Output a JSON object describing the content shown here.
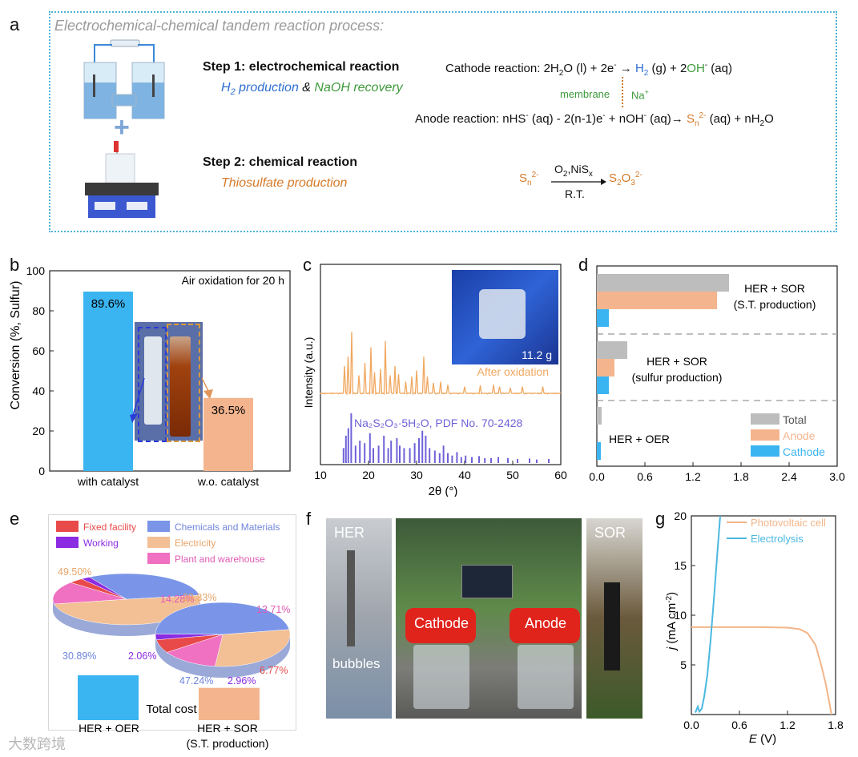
{
  "panel_labels": {
    "a": "a",
    "b": "b",
    "c": "c",
    "d": "d",
    "e": "e",
    "f": "f",
    "g": "g"
  },
  "panel_a": {
    "title": "Electrochemical-chemical tandem reaction process:",
    "step1_title": "Step 1: electrochemical reaction",
    "step1_h2": "H",
    "step1_h2_sub": "2",
    "step1_h2_rest": " production",
    "step1_amp": " & ",
    "step1_naoh": "NaOH recovery",
    "step2_title": "Step 2: chemical reaction",
    "step2_sub": "Thiosulfate production",
    "cathode_eq_prefix": "Cathode reaction: 2H",
    "cathode_eq_mid1": "O (l) + 2e",
    "cathode_eq_mid2": " → ",
    "cathode_eq_h2": "H",
    "cathode_eq_h2sub": "2",
    "cathode_eq_mid3": " (g) + 2",
    "cathode_eq_oh": "OH",
    "cathode_eq_end": " (aq)",
    "membrane": "membrane",
    "na": "Na",
    "anode_eq_prefix": "Anode reaction: nHS",
    "anode_eq_mid1": " (aq) - 2(n-1)e",
    "anode_eq_mid2": " + nOH",
    "anode_eq_mid3": " (aq)→ ",
    "anode_eq_sn": "S",
    "anode_eq_n": "n",
    "anode_eq_2m": "2-",
    "anode_eq_end": " (aq) + nH",
    "anode_eq_end2": "O",
    "step2_left": "S",
    "step2_left_sub": "n",
    "step2_left_sup": "2-",
    "step2_top": "O",
    "step2_top_sub": "2",
    "step2_top_rest": ",NiS",
    "step2_top_x": "x",
    "step2_bottom": "R.T.",
    "step2_right": "S",
    "step2_right_sub1": "2",
    "step2_right_O": "O",
    "step2_right_sub2": "3",
    "step2_right_sup": "2-"
  },
  "panel_b": {
    "ylabel": "Conversion (%, Sulfur)",
    "annotation": "Air oxidation for 20 h",
    "colors": {
      "with": "#3bb5f1",
      "without": "#f4b58e"
    }
  },
  "panel_c": {
    "ylabel": "Intensity (a.u.)",
    "xlabel": "2θ (°)",
    "label_after": "After oxidation",
    "label_ref": "Na₂S₂O₃·5H₂O, PDF No. 70-2428",
    "mass": "11.2 g"
  },
  "panel_d": {
    "group1_l1": "HER + SOR",
    "group1_l2": "(S.T. production)",
    "group2_l1": "HER + SOR",
    "group2_l2": "(sulfur production)",
    "group3_l1": "HER + OER",
    "legend": [
      "Total",
      "Anode",
      "Cathode"
    ]
  },
  "panel_e": {
    "legend": [
      "Fixed facility",
      "Working",
      "Chemicals and Materials",
      "Electricity",
      "Plant and warehouse"
    ],
    "pie1_pcts": [
      "49.50%",
      "14.28%",
      "3.27%",
      "2.06%",
      "30.89%"
    ],
    "pie2_pcts": [
      "29.33%",
      "13.71%",
      "6.77%",
      "2.96%",
      "47.24%"
    ],
    "total_cost": "Total cost",
    "xlabel1": "HER + OER",
    "xlabel2_l1": "HER + SOR",
    "xlabel2_l2": "(S.T. production)"
  },
  "panel_f": {
    "her": "HER",
    "bubbles": "bubbles",
    "cathode": "Cathode",
    "anode": "Anode",
    "sor": "SOR"
  },
  "panel_g": {
    "ylabel_j": "j",
    "ylabel_rest": " (mA cm",
    "ylabel_sup": "-2",
    "ylabel_end": ")",
    "xlabel_e": "E",
    "xlabel_rest": " (V)"
  },
  "watermark": "大数跨境",
  "chart_data": [
    {
      "type": "bar",
      "panel": "b",
      "categories": [
        "with catalyst",
        "w.o. catalyst"
      ],
      "values": [
        89.6,
        36.5
      ],
      "data_labels": [
        "89.6%",
        "36.5%"
      ],
      "ylabel": "Conversion (%, Sulfur)",
      "ylim": [
        0,
        100
      ],
      "yticks": [
        0,
        20,
        40,
        60,
        80,
        100
      ],
      "title": "Air oxidation for 20 h"
    },
    {
      "type": "bar",
      "panel": "d",
      "orientation": "horizontal",
      "categories": [
        "HER + SOR (S.T. production)",
        "HER + SOR (sulfur production)",
        "HER + OER"
      ],
      "series": [
        {
          "name": "Total",
          "color": "#bdbdbd",
          "values": [
            1.65,
            0.38,
            0.06
          ]
        },
        {
          "name": "Anode",
          "color": "#f4b58e",
          "values": [
            1.5,
            0.22,
            0.0
          ]
        },
        {
          "name": "Cathode",
          "color": "#3bb5f1",
          "values": [
            0.15,
            0.15,
            0.05
          ]
        }
      ],
      "xlim": [
        0,
        3.0
      ],
      "xticks": [
        0.0,
        0.6,
        1.2,
        1.8,
        2.4,
        3.0
      ],
      "xtick_labels": [
        "0.0",
        "0.6",
        "1.2",
        "1.8",
        "2.4",
        "3.0"
      ]
    },
    {
      "type": "line",
      "panel": "c",
      "xlabel": "2θ (°)",
      "ylabel": "Intensity (a.u.)",
      "xlim": [
        10,
        60
      ],
      "xticks": [
        10,
        20,
        30,
        40,
        50,
        60
      ],
      "series": [
        {
          "name": "After oxidation",
          "color": "#f0a860",
          "peaks": [
            [
              15.0,
              0.45
            ],
            [
              15.7,
              0.6
            ],
            [
              16.6,
              1.0
            ],
            [
              18.0,
              0.3
            ],
            [
              19.3,
              0.5
            ],
            [
              20.4,
              0.75
            ],
            [
              21.2,
              0.35
            ],
            [
              22.6,
              0.4
            ],
            [
              23.4,
              0.85
            ],
            [
              24.6,
              0.3
            ],
            [
              25.5,
              0.45
            ],
            [
              26.3,
              0.32
            ],
            [
              27.8,
              0.2
            ],
            [
              29.0,
              0.28
            ],
            [
              30.0,
              0.38
            ],
            [
              31.4,
              0.6
            ],
            [
              32.2,
              0.28
            ],
            [
              33.5,
              0.18
            ],
            [
              35.0,
              0.2
            ],
            [
              36.6,
              0.15
            ],
            [
              40.0,
              0.12
            ],
            [
              43.2,
              0.14
            ],
            [
              46.0,
              0.15
            ],
            [
              47.3,
              0.12
            ],
            [
              49.4,
              0.1
            ],
            [
              52.0,
              0.12
            ],
            [
              56.2,
              0.12
            ]
          ]
        },
        {
          "name": "Na2S2O3·5H2O, PDF No. 70-2428",
          "color": "#6f62d8",
          "peaks": [
            [
              14.8,
              0.3
            ],
            [
              15.3,
              0.55
            ],
            [
              15.8,
              0.7
            ],
            [
              16.4,
              1.0
            ],
            [
              17.3,
              0.35
            ],
            [
              18.2,
              0.45
            ],
            [
              19.2,
              0.4
            ],
            [
              20.3,
              0.6
            ],
            [
              21.0,
              0.3
            ],
            [
              22.1,
              0.35
            ],
            [
              23.2,
              0.55
            ],
            [
              24.1,
              0.3
            ],
            [
              24.7,
              0.45
            ],
            [
              25.9,
              0.5
            ],
            [
              26.5,
              0.35
            ],
            [
              27.4,
              0.3
            ],
            [
              28.6,
              0.3
            ],
            [
              29.6,
              0.4
            ],
            [
              30.5,
              0.5
            ],
            [
              31.2,
              0.65
            ],
            [
              31.9,
              0.55
            ],
            [
              32.7,
              0.3
            ],
            [
              33.8,
              0.25
            ],
            [
              34.8,
              0.2
            ],
            [
              35.6,
              0.35
            ],
            [
              36.5,
              0.2
            ],
            [
              37.4,
              0.15
            ],
            [
              38.4,
              0.22
            ],
            [
              39.3,
              0.12
            ],
            [
              40.2,
              0.15
            ],
            [
              41.5,
              0.12
            ],
            [
              43.0,
              0.14
            ],
            [
              44.2,
              0.1
            ],
            [
              45.5,
              0.1
            ],
            [
              47.0,
              0.12
            ],
            [
              49.0,
              0.1
            ],
            [
              51.0,
              0.08
            ],
            [
              53.5,
              0.09
            ],
            [
              55.0,
              0.07
            ],
            [
              57.5,
              0.08
            ]
          ]
        }
      ]
    },
    {
      "type": "line",
      "panel": "g",
      "xlabel": "E (V)",
      "ylabel": "j (mA cm-2)",
      "xlim": [
        0.0,
        1.8
      ],
      "ylim": [
        0,
        20
      ],
      "xticks": [
        0.0,
        0.6,
        1.2,
        1.8
      ],
      "xtick_labels": [
        "0.0",
        "0.6",
        "1.2",
        "1.8"
      ],
      "yticks": [
        5,
        10,
        15,
        20
      ],
      "series": [
        {
          "name": "Photovoltaic cell",
          "color": "#f2b589",
          "x": [
            0.0,
            0.2,
            0.5,
            0.8,
            1.0,
            1.2,
            1.35,
            1.45,
            1.55,
            1.62,
            1.68,
            1.72,
            1.75
          ],
          "y": [
            8.8,
            8.8,
            8.8,
            8.8,
            8.78,
            8.75,
            8.6,
            8.2,
            7.0,
            5.0,
            3.0,
            1.3,
            0.0
          ]
        },
        {
          "name": "Electrolysis",
          "color": "#4bb8e0",
          "x": [
            0.05,
            0.08,
            0.1,
            0.13,
            0.16,
            0.2,
            0.24,
            0.28,
            0.32,
            0.36
          ],
          "y": [
            0.2,
            0.8,
            0.3,
            0.6,
            1.8,
            4.0,
            7.5,
            11.5,
            15.8,
            20.0
          ]
        }
      ]
    },
    {
      "type": "pie",
      "panel": "e",
      "name": "HER + OER",
      "labels": [
        "Electricity",
        "Plant and warehouse",
        "Fixed facility",
        "Working",
        "Chemicals and Materials"
      ],
      "values": [
        49.5,
        14.28,
        3.27,
        2.06,
        30.89
      ],
      "colors": [
        "#f3bf94",
        "#f070c2",
        "#e84a4a",
        "#8b2be2",
        "#7a95e8"
      ]
    },
    {
      "type": "pie",
      "panel": "e",
      "name": "HER + SOR (S.T. production)",
      "labels": [
        "Electricity",
        "Plant and warehouse",
        "Fixed facility",
        "Working",
        "Chemicals and Materials"
      ],
      "values": [
        29.33,
        13.71,
        6.77,
        2.96,
        47.24
      ],
      "colors": [
        "#f3bf94",
        "#f070c2",
        "#e84a4a",
        "#8b2be2",
        "#7a95e8"
      ]
    },
    {
      "type": "bar",
      "panel": "e",
      "name": "Total cost",
      "categories": [
        "HER + OER",
        "HER + SOR (S.T. production)"
      ],
      "values": [
        1.0,
        0.72
      ],
      "colors": [
        "#3bb5f1",
        "#f4b58e"
      ]
    }
  ]
}
